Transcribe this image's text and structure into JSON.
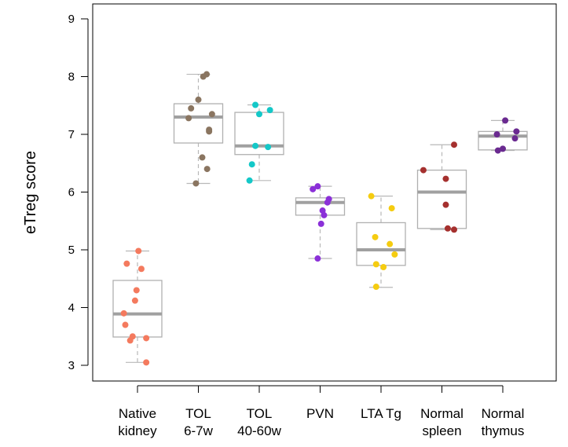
{
  "chart_data": {
    "type": "box",
    "title": "",
    "xlabel": "",
    "ylabel": "eTreg score",
    "ylim": [
      2.9,
      9.2
    ],
    "yticks": [
      3,
      4,
      5,
      6,
      7,
      8,
      9
    ],
    "ytick_labels": [
      "3",
      "4",
      "5",
      "6",
      "7",
      "8",
      "9"
    ],
    "grid": false,
    "legend": "none",
    "box_color": "#b0b0b0",
    "median_color": "#a0a0a0",
    "groups": [
      {
        "label_lines": [
          "Native",
          "kidney"
        ],
        "color": "#f47a5e",
        "box": {
          "min": 3.05,
          "q1": 3.49,
          "median": 3.89,
          "q3": 4.47,
          "max": 4.98
        },
        "points": [
          4.98,
          4.76,
          4.67,
          4.3,
          4.12,
          3.9,
          3.7,
          3.5,
          3.47,
          3.43,
          3.05
        ],
        "jitter": [
          0.02,
          -0.22,
          0.08,
          -0.02,
          -0.05,
          -0.28,
          -0.25,
          -0.1,
          0.18,
          -0.15,
          0.18
        ]
      },
      {
        "label_lines": [
          "TOL",
          "6-7w"
        ],
        "color": "#8a7560",
        "box": {
          "min": 6.15,
          "q1": 6.85,
          "median": 7.3,
          "q3": 7.53,
          "max": 8.04
        },
        "points": [
          8.04,
          8.0,
          7.6,
          7.45,
          7.35,
          7.28,
          7.08,
          7.05,
          6.6,
          6.4,
          6.15
        ],
        "jitter": [
          0.17,
          0.1,
          0.0,
          -0.15,
          0.28,
          -0.2,
          0.22,
          0.22,
          0.08,
          0.18,
          -0.05
        ]
      },
      {
        "label_lines": [
          "TOL",
          "40-60w"
        ],
        "color": "#14c8c8",
        "box": {
          "min": 6.2,
          "q1": 6.65,
          "median": 6.8,
          "q3": 7.38,
          "max": 7.51
        },
        "points": [
          7.51,
          7.42,
          7.35,
          6.8,
          6.78,
          6.48,
          6.2
        ],
        "jitter": [
          -0.08,
          0.22,
          0.0,
          -0.08,
          0.18,
          -0.15,
          -0.2
        ]
      },
      {
        "label_lines": [
          "PVN"
        ],
        "color": "#8b30d8",
        "box": {
          "min": 4.85,
          "q1": 5.6,
          "median": 5.82,
          "q3": 5.9,
          "max": 6.1
        },
        "points": [
          6.1,
          6.05,
          5.88,
          5.82,
          5.68,
          5.6,
          5.45,
          4.85
        ],
        "jitter": [
          -0.05,
          -0.15,
          0.18,
          0.15,
          0.05,
          0.08,
          0.02,
          -0.05
        ]
      },
      {
        "label_lines": [
          "LTA Tg"
        ],
        "color": "#f5cc10",
        "box": {
          "min": 4.35,
          "q1": 4.73,
          "median": 5.0,
          "q3": 5.47,
          "max": 5.93
        },
        "points": [
          5.93,
          5.72,
          5.22,
          5.1,
          4.92,
          4.75,
          4.7,
          4.36
        ],
        "jitter": [
          -0.2,
          0.22,
          -0.12,
          0.18,
          0.28,
          -0.1,
          0.05,
          -0.1
        ]
      },
      {
        "label_lines": [
          "Normal",
          "spleen"
        ],
        "color": "#a5302e",
        "box": {
          "min": 5.35,
          "q1": 5.37,
          "median": 6.0,
          "q3": 6.38,
          "max": 6.82
        },
        "points": [
          6.82,
          6.38,
          6.23,
          5.78,
          5.37,
          5.35
        ],
        "jitter": [
          0.25,
          -0.38,
          0.08,
          0.08,
          0.12,
          0.25
        ]
      },
      {
        "label_lines": [
          "Normal",
          "thymus"
        ],
        "color": "#6a2a90",
        "box": {
          "min": 6.72,
          "q1": 6.73,
          "median": 6.97,
          "q3": 7.05,
          "max": 7.24
        },
        "points": [
          7.24,
          7.05,
          7.0,
          6.93,
          6.75,
          6.72
        ],
        "jitter": [
          0.05,
          0.28,
          -0.12,
          0.25,
          0.0,
          -0.1
        ]
      }
    ]
  }
}
